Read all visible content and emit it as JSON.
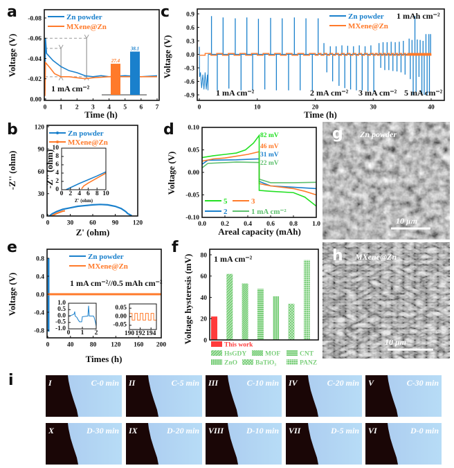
{
  "panel_letters": {
    "a": "a",
    "b": "b",
    "c": "c",
    "d": "d",
    "e": "e",
    "f": "f",
    "g": "g",
    "h": "h",
    "i": "i"
  },
  "colors": {
    "zn_powder": "#1a80cc",
    "mxene_zn": "#ff7a2a",
    "guide": "#999999",
    "this_work": "#ff3b3b",
    "reference": "#7ccf7c",
    "d5": "#22e022",
    "d3": "#ff7a2a",
    "d2": "#1a80cc",
    "d1": "#5cbf6c"
  },
  "chart_data": [
    {
      "panel": "a",
      "type": "line",
      "xlabel": "Time (h)",
      "ylabel": "Voltage (V)",
      "xlim": [
        0,
        7
      ],
      "ylim": [
        -0.08,
        0.0
      ],
      "xticks": [
        "0",
        "1",
        "2",
        "3",
        "4",
        "5",
        "6",
        "7"
      ],
      "yticks": [
        "0.00",
        "-0.02",
        "-0.04",
        "-0.06",
        "-0.08"
      ],
      "annotation": "1 mA cm⁻²",
      "guide_levels_V": [
        -0.022,
        -0.05,
        -0.06
      ],
      "series": [
        {
          "name": "Zn powder",
          "color": "#1a80cc",
          "points": [
            [
              0,
              -0.008
            ],
            [
              0.03,
              -0.06
            ],
            [
              0.1,
              -0.045
            ],
            [
              0.5,
              -0.038
            ],
            [
              1,
              -0.032
            ],
            [
              1.5,
              -0.028
            ],
            [
              2,
              -0.026
            ],
            [
              2.5,
              -0.023
            ],
            [
              3,
              -0.022
            ],
            [
              3.5,
              -0.023
            ],
            [
              4,
              -0.022
            ],
            [
              5,
              -0.023
            ],
            [
              6,
              -0.022
            ],
            [
              7,
              -0.023
            ]
          ]
        },
        {
          "name": "MXene@Zn",
          "color": "#ff7a2a",
          "points": [
            [
              0,
              -0.003
            ],
            [
              0.03,
              -0.036
            ],
            [
              0.3,
              -0.031
            ],
            [
              0.6,
              -0.025
            ],
            [
              1,
              -0.022
            ],
            [
              1.5,
              -0.022
            ],
            [
              2,
              -0.021
            ],
            [
              2.5,
              -0.02
            ],
            [
              3,
              -0.021
            ],
            [
              4,
              -0.022
            ],
            [
              5,
              -0.022
            ],
            [
              6,
              -0.022
            ],
            [
              7,
              -0.022
            ]
          ]
        }
      ],
      "inset_bars": {
        "labels": [
          "27.4",
          "38.1"
        ],
        "values": [
          27.4,
          38.1
        ],
        "colors": [
          "#ff7a2a",
          "#1a80cc"
        ]
      }
    },
    {
      "panel": "c",
      "type": "line",
      "xlabel": "Time (h)",
      "ylabel": "Voltage (V)",
      "xlim": [
        0,
        40
      ],
      "ylim": [
        -0.9,
        0.9
      ],
      "xticks": [
        "0",
        "10",
        "20",
        "30",
        "40"
      ],
      "yticks": [
        "0.9",
        "0.6",
        "0.3",
        "0.0",
        "-0.3",
        "-0.6",
        "-0.9"
      ],
      "legend": [
        "Zn powder",
        "MXene@Zn"
      ],
      "capacity_label": "1 mAh cm⁻²",
      "rate_labels": [
        "1 mA cm⁻²",
        "2 mA cm⁻²",
        "3 mA cm⁻²",
        "5 mA cm⁻²"
      ],
      "zn_powder_initial": [
        [
          0,
          0.17
        ],
        [
          0.05,
          -0.5
        ],
        [
          0.2,
          -0.4
        ],
        [
          0.4,
          -0.75
        ],
        [
          0.6,
          -0.45
        ],
        [
          0.8,
          -0.78
        ],
        [
          1,
          -0.4
        ],
        [
          1.2,
          -0.78
        ],
        [
          1.4,
          -0.45
        ],
        [
          1.5,
          -0.8
        ],
        [
          1.55,
          0
        ]
      ],
      "zn_powder_spikes": [
        [
          2.1,
          0.85
        ],
        [
          4.1,
          0.82
        ],
        [
          6.2,
          0.8
        ],
        [
          8.2,
          0.82
        ],
        [
          10.2,
          0.79
        ],
        [
          12.3,
          0.81
        ],
        [
          14.3,
          0.8
        ],
        [
          16.4,
          0.82
        ],
        [
          18.4,
          0.8
        ],
        [
          20.5,
          0.8
        ],
        [
          3.1,
          -0.8
        ],
        [
          5.1,
          -0.76
        ],
        [
          7.2,
          -0.8
        ],
        [
          9.2,
          -0.8
        ],
        [
          11.3,
          -0.78
        ],
        [
          13.3,
          -0.8
        ],
        [
          15.4,
          -0.8
        ],
        [
          17.4,
          -0.8
        ],
        [
          19.5,
          -0.8
        ],
        [
          21.5,
          0.25
        ],
        [
          22.6,
          0.18
        ],
        [
          23.6,
          0.18
        ],
        [
          24.6,
          0.2
        ],
        [
          25.6,
          0.19
        ],
        [
          26.6,
          0.18
        ],
        [
          27.6,
          0.2
        ],
        [
          28.6,
          0.18
        ],
        [
          29.6,
          0.2
        ],
        [
          22,
          -0.4
        ],
        [
          23,
          -0.6
        ],
        [
          24.1,
          -0.7
        ],
        [
          25.1,
          -0.75
        ],
        [
          26.1,
          -0.78
        ],
        [
          27.1,
          -0.8
        ],
        [
          28.1,
          -0.8
        ],
        [
          29.1,
          -0.82
        ],
        [
          30.1,
          -0.84
        ],
        [
          31,
          0.25
        ],
        [
          31.7,
          0.27
        ],
        [
          32.4,
          0.27
        ],
        [
          33.1,
          0.28
        ],
        [
          33.8,
          0.27
        ],
        [
          34.5,
          0.28
        ],
        [
          35.2,
          0.3
        ],
        [
          31.3,
          -0.3
        ],
        [
          32,
          -0.35
        ],
        [
          32.7,
          -0.35
        ],
        [
          33.4,
          -0.37
        ],
        [
          34.1,
          -0.38
        ],
        [
          34.8,
          -0.4
        ],
        [
          35.5,
          -0.45
        ],
        [
          36.2,
          0.35
        ],
        [
          36.7,
          0.32
        ],
        [
          37.2,
          0.85
        ],
        [
          37.6,
          0.33
        ],
        [
          38.1,
          0.32
        ],
        [
          38.6,
          0.3
        ],
        [
          39.1,
          0.45
        ],
        [
          39.6,
          0.45
        ],
        [
          39.9,
          0.45
        ],
        [
          36.4,
          -0.55
        ],
        [
          36.9,
          -0.9
        ],
        [
          37.4,
          -0.85
        ],
        [
          37.9,
          -0.5
        ],
        [
          38.4,
          -0.9
        ],
        [
          38.8,
          -0.9
        ],
        [
          39.3,
          -0.9
        ],
        [
          39.7,
          -0.85
        ]
      ],
      "mxene_square_wave": {
        "amplitude_V": 0.02,
        "segments": [
          [
            0,
            20,
            1
          ],
          [
            20,
            30,
            0.5
          ],
          [
            30,
            36,
            0.35
          ],
          [
            36,
            40,
            0.12
          ]
        ]
      }
    },
    {
      "panel": "b",
      "type": "line",
      "xlabel": "Z' (ohm)",
      "ylabel": "-Z'' (ohm)",
      "xlim": [
        0,
        120
      ],
      "ylim": [
        0,
        120
      ],
      "xticks": [
        "0",
        "30",
        "60",
        "90",
        "120"
      ],
      "yticks": [
        "120",
        "90",
        "60",
        "30",
        "0"
      ],
      "series": [
        {
          "name": "Zn powder",
          "color": "#1a80cc",
          "points": [
            [
              2,
              0
            ],
            [
              6,
              3
            ],
            [
              12,
              6
            ],
            [
              20,
              9
            ],
            [
              30,
              11
            ],
            [
              40,
              13
            ],
            [
              50,
              14
            ],
            [
              60,
              15
            ],
            [
              70,
              15.5
            ],
            [
              80,
              15
            ],
            [
              90,
              13
            ],
            [
              98,
              10
            ],
            [
              104,
              6
            ],
            [
              107,
              3
            ],
            [
              112,
              0.5
            ]
          ]
        },
        {
          "name": "MXene@Zn",
          "color": "#ff7a2a",
          "points": [
            [
              5,
              0
            ],
            [
              8,
              1.5
            ],
            [
              12,
              3.5
            ],
            [
              16,
              5
            ],
            [
              20,
              6.5
            ],
            [
              23,
              7
            ]
          ]
        }
      ],
      "inset": {
        "xlabel": "Z' (ohm)",
        "ylabel": "-Z'' (ohm)",
        "xlim": [
          0,
          10
        ],
        "ylim": [
          0,
          10
        ],
        "xticks": [
          "0",
          "2",
          "4",
          "6",
          "8",
          "10"
        ],
        "yticks": [
          "10",
          "8",
          "6",
          "4",
          "2",
          "0"
        ],
        "series": [
          {
            "name": "Zn powder",
            "color": "#1a80cc",
            "points": [
              [
                1,
                0
              ],
              [
                2,
                0.5
              ],
              [
                4,
                1.5
              ],
              [
                6,
                2.4
              ],
              [
                8,
                3.3
              ],
              [
                10,
                4.3
              ]
            ]
          },
          {
            "name": "MXene@Zn",
            "color": "#ff7a2a",
            "points": [
              [
                4.5,
                0.2
              ],
              [
                5,
                0.9
              ],
              [
                6,
                1.6
              ],
              [
                8,
                2.8
              ],
              [
                10,
                4
              ]
            ]
          }
        ]
      }
    },
    {
      "panel": "d",
      "type": "line",
      "xlabel": "Areal capacity (mAh)",
      "ylabel": "Voltage (V)",
      "xlim": [
        0,
        1
      ],
      "ylim": [
        -0.1,
        0.1
      ],
      "xticks": [
        "0.0",
        "0.2",
        "0.4",
        "0.6",
        "0.8",
        "1.0"
      ],
      "yticks": [
        "0.10",
        "0.05",
        "0.00",
        "-0.05",
        "-0.10"
      ],
      "series": [
        {
          "name": "5",
          "color": "#22e022",
          "hysteresis": "82 mV",
          "points": [
            [
              0,
              0.033
            ],
            [
              0.1,
              0.037
            ],
            [
              0.2,
              0.04
            ],
            [
              0.3,
              0.043
            ],
            [
              0.38,
              0.05
            ],
            [
              0.45,
              0.065
            ],
            [
              0.5,
              0.082
            ],
            [
              0.5,
              -0.04
            ],
            [
              0.6,
              -0.042
            ],
            [
              0.8,
              -0.045
            ],
            [
              0.9,
              -0.055
            ],
            [
              1,
              -0.075
            ]
          ]
        },
        {
          "name": "3",
          "color": "#ff7a2a",
          "hysteresis": "46 mV",
          "points": [
            [
              0,
              0.025
            ],
            [
              0.1,
              0.03
            ],
            [
              0.2,
              0.032
            ],
            [
              0.4,
              0.04
            ],
            [
              0.5,
              0.046
            ],
            [
              0.5,
              -0.025
            ],
            [
              0.6,
              -0.03
            ],
            [
              0.8,
              -0.036
            ],
            [
              0.9,
              -0.042
            ],
            [
              1,
              -0.05
            ]
          ]
        },
        {
          "name": "2",
          "color": "#1a80cc",
          "hysteresis": "31 mV",
          "points": [
            [
              0,
              0.018
            ],
            [
              0.05,
              0.027
            ],
            [
              0.3,
              0.028
            ],
            [
              0.5,
              0.03
            ],
            [
              0.5,
              -0.02
            ],
            [
              0.6,
              -0.03
            ],
            [
              0.8,
              -0.033
            ],
            [
              1,
              -0.036
            ]
          ]
        },
        {
          "name": "1 mA cm⁻²",
          "color": "#5cbf6c",
          "hysteresis": "22 mV",
          "points": [
            [
              0,
              0.01
            ],
            [
              0.05,
              0.02
            ],
            [
              0.3,
              0.023
            ],
            [
              0.5,
              0.022
            ],
            [
              0.5,
              -0.015
            ],
            [
              0.6,
              -0.023
            ],
            [
              0.8,
              -0.023
            ],
            [
              1,
              -0.022
            ]
          ]
        }
      ]
    },
    {
      "panel": "e",
      "type": "line",
      "xlabel": "Times (h)",
      "ylabel": "Voltage (V)",
      "xlim": [
        0,
        200
      ],
      "ylim": [
        -0.8,
        0.8
      ],
      "xticks": [
        "0",
        "40",
        "80",
        "120",
        "160",
        "200"
      ],
      "yticks": [
        "0.8",
        "0.4",
        "0.0",
        "-0.4",
        "-0.8"
      ],
      "legend": [
        "Zn powder",
        "MXene@Zn"
      ],
      "annotation": "1 mA cm⁻²//0.5 mAh cm⁻²",
      "zn_powder_range": {
        "t_end_h": 3,
        "v_max": 0.8,
        "v_min": -0.83
      },
      "mxene_level_V": 0,
      "inset_left": {
        "xlim": [
          0,
          2
        ],
        "ylim": [
          -1,
          1
        ],
        "xticks": [
          "0",
          "1",
          "2"
        ],
        "yticks": [
          "1.0",
          "0.5",
          "0.0",
          "-0.5",
          "-1.0"
        ],
        "points": [
          [
            0,
            0
          ],
          [
            0.2,
            0.05
          ],
          [
            0.4,
            0.15
          ],
          [
            0.45,
            0.35
          ],
          [
            0.48,
            0
          ],
          [
            0.6,
            -0.1
          ],
          [
            0.7,
            -0.3
          ],
          [
            0.8,
            -0.45
          ],
          [
            0.95,
            -0.45
          ],
          [
            1,
            -0.05
          ],
          [
            1.4,
            0
          ],
          [
            1.45,
            0.8
          ],
          [
            1.5,
            0
          ],
          [
            1.8,
            0
          ],
          [
            1.85,
            -0.1
          ],
          [
            1.95,
            -0.5
          ],
          [
            2,
            -0.8
          ]
        ]
      },
      "inset_right": {
        "xlim": [
          190,
          195
        ],
        "ylim": [
          -0.075,
          0.075
        ],
        "xticks": [
          "190",
          "192",
          "194"
        ],
        "yticks": [
          "0.05",
          "0.00",
          "-0.05"
        ],
        "amplitude_V": 0.02,
        "half_period_h": 0.5
      }
    },
    {
      "panel": "f",
      "type": "bar",
      "ylabel": "Voltage hysteresis (mV)",
      "ylim": [
        0,
        80
      ],
      "yticks": [
        "80",
        "60",
        "40",
        "20",
        "0"
      ],
      "annotation": "1 mA cm⁻²",
      "categories": [
        "This work",
        "HsGDY",
        "MOF",
        "CNT",
        "ZnO",
        "BaTiO₃",
        "PANZ"
      ],
      "values": [
        22,
        62,
        53,
        48,
        41,
        34,
        75
      ]
    }
  ],
  "sem": {
    "g": {
      "label": "Zn powder",
      "scale": "10 μm"
    },
    "h": {
      "label": "MXene@Zn",
      "scale": "10 μm"
    }
  },
  "photos": [
    {
      "numeral": "I",
      "time": "C-0 min"
    },
    {
      "numeral": "II",
      "time": "C-5 min"
    },
    {
      "numeral": "III",
      "time": "C-10 min"
    },
    {
      "numeral": "IV",
      "time": "C-20 min"
    },
    {
      "numeral": "V",
      "time": "C-30 min"
    },
    {
      "numeral": "X",
      "time": "D-30 min"
    },
    {
      "numeral": "IX",
      "time": "D-20 min"
    },
    {
      "numeral": "VIII",
      "time": "D-10 min"
    },
    {
      "numeral": "VII",
      "time": "D-5 min"
    },
    {
      "numeral": "VI",
      "time": "D-0 min"
    }
  ]
}
